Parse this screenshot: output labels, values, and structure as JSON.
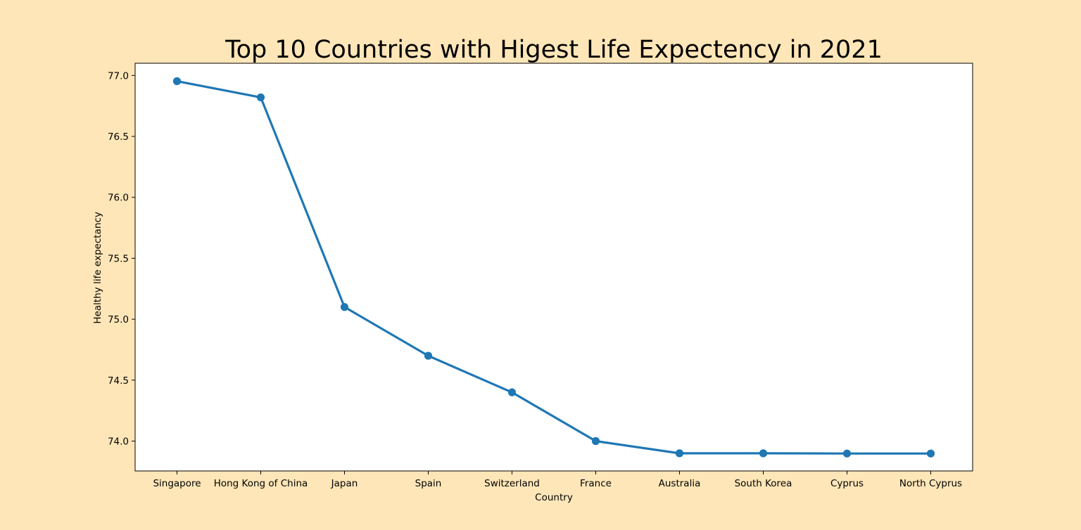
{
  "chart_data": {
    "type": "line",
    "title": "Top 10 Countries with Higest Life Expectency in 2021",
    "xlabel": "Country",
    "ylabel": "Healthy life expectancy",
    "categories": [
      "Singapore",
      "Hong Kong of China",
      "Japan",
      "Spain",
      "Switzerland",
      "France",
      "Australia",
      "South Korea",
      "Cyprus",
      "North Cyprus"
    ],
    "values": [
      76.953,
      76.82,
      75.1,
      74.7,
      74.4,
      74.0,
      73.9,
      73.9,
      73.898,
      73.898
    ],
    "ylim": [
      73.755,
      77.1
    ],
    "yticks": [
      "74.0",
      "74.5",
      "75.0",
      "75.5",
      "76.0",
      "76.5",
      "77.0"
    ],
    "grid": false,
    "legend": false,
    "colors": {
      "background": "#ffe6b8",
      "plot_background": "#ffffff",
      "line": "#1f77b4"
    }
  }
}
